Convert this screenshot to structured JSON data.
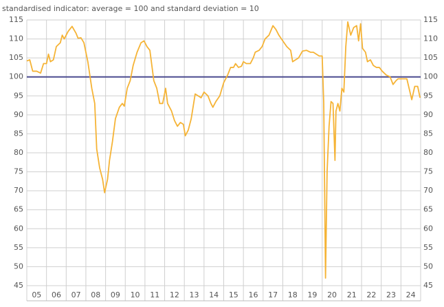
{
  "chart_data": {
    "type": "line",
    "title": "standardised indicator: average = 100 and standard deviation = 10",
    "x": [
      2005.0,
      2005.15,
      2005.3,
      2005.5,
      2005.7,
      2005.85,
      2006.0,
      2006.1,
      2006.2,
      2006.35,
      2006.5,
      2006.7,
      2006.8,
      2006.9,
      2007.1,
      2007.3,
      2007.5,
      2007.6,
      2007.75,
      2007.9,
      2008.1,
      2008.3,
      2008.45,
      2008.55,
      2008.7,
      2008.85,
      2008.95,
      2009.1,
      2009.2,
      2009.35,
      2009.5,
      2009.7,
      2009.85,
      2009.95,
      2010.1,
      2010.25,
      2010.4,
      2010.6,
      2010.8,
      2010.95,
      2011.1,
      2011.25,
      2011.35,
      2011.45,
      2011.6,
      2011.75,
      2011.9,
      2012.05,
      2012.15,
      2012.35,
      2012.5,
      2012.65,
      2012.8,
      2012.95,
      2013.05,
      2013.2,
      2013.35,
      2013.55,
      2013.7,
      2013.85,
      2014.0,
      2014.2,
      2014.35,
      2014.45,
      2014.6,
      2014.8,
      2015.0,
      2015.2,
      2015.35,
      2015.5,
      2015.6,
      2015.75,
      2015.9,
      2016.0,
      2016.15,
      2016.35,
      2016.5,
      2016.6,
      2016.8,
      2016.95,
      2017.1,
      2017.3,
      2017.5,
      2017.65,
      2017.8,
      2018.0,
      2018.2,
      2018.4,
      2018.5,
      2018.65,
      2018.8,
      2019.0,
      2019.2,
      2019.4,
      2019.55,
      2019.7,
      2019.85,
      2020.0,
      2020.08,
      2020.17,
      2020.25,
      2020.35,
      2020.45,
      2020.55,
      2020.65,
      2020.7,
      2020.8,
      2020.9,
      2021.0,
      2021.1,
      2021.2,
      2021.3,
      2021.45,
      2021.6,
      2021.75,
      2021.85,
      2021.95,
      2022.05,
      2022.2,
      2022.3,
      2022.45,
      2022.6,
      2022.75,
      2022.9,
      2023.05,
      2023.25,
      2023.45,
      2023.6,
      2023.75,
      2023.85,
      2024.0,
      2024.3,
      2024.55,
      2024.7,
      2024.85,
      2024.97
    ],
    "values": [
      104.2,
      104.5,
      101.5,
      101.5,
      101,
      103.5,
      103.5,
      106,
      104,
      104.5,
      108,
      109,
      111,
      110,
      112,
      113.3,
      111.5,
      110.2,
      110.3,
      109,
      104,
      97,
      93,
      81,
      76,
      73,
      69.5,
      73,
      78,
      83,
      89,
      92,
      93,
      92.3,
      97,
      99,
      103,
      106.5,
      109,
      109.5,
      108,
      107,
      103,
      99,
      97,
      93,
      93,
      97,
      93,
      91,
      88.5,
      87,
      88,
      87.5,
      84.5,
      86,
      89,
      95.5,
      95,
      94.5,
      96,
      95,
      93,
      92,
      93.5,
      95,
      98.5,
      100.5,
      102.5,
      102.5,
      103.5,
      102.5,
      102.8,
      104,
      103.5,
      103.5,
      105,
      106.5,
      107,
      108,
      110,
      111,
      113.5,
      112.5,
      111,
      109.5,
      108,
      107,
      104,
      104.5,
      105,
      106.8,
      107,
      106.5,
      106.5,
      106,
      105.5,
      105.5,
      93,
      47,
      75,
      87,
      93.5,
      93,
      78,
      91,
      93,
      91,
      97,
      96,
      108,
      114.5,
      111,
      113,
      113.5,
      109.5,
      114,
      107.5,
      106.5,
      104,
      104.5,
      103,
      102.5,
      102.5,
      101.5,
      100.5,
      100,
      98,
      99,
      99.5,
      99.5,
      99.5,
      94,
      97.5,
      97.5,
      94.5
    ],
    "color": "#f5b335",
    "reference_line": 100,
    "reference_color": "#4b4b8f",
    "xlim": [
      2005,
      2025
    ],
    "ylim": [
      45,
      115
    ],
    "yticks": [
      45,
      50,
      55,
      60,
      65,
      70,
      75,
      80,
      85,
      90,
      95,
      100,
      105,
      110,
      115
    ],
    "xticks": [
      {
        "value": 2005.5,
        "label": "05"
      },
      {
        "value": 2006.5,
        "label": "06"
      },
      {
        "value": 2007.5,
        "label": "07"
      },
      {
        "value": 2008.5,
        "label": "08"
      },
      {
        "value": 2009.5,
        "label": "09"
      },
      {
        "value": 2010.5,
        "label": "10"
      },
      {
        "value": 2011.5,
        "label": "11"
      },
      {
        "value": 2012.5,
        "label": "12"
      },
      {
        "value": 2013.5,
        "label": "13"
      },
      {
        "value": 2014.5,
        "label": "14"
      },
      {
        "value": 2015.5,
        "label": "15"
      },
      {
        "value": 2016.5,
        "label": "16"
      },
      {
        "value": 2017.5,
        "label": "17"
      },
      {
        "value": 2018.5,
        "label": "18"
      },
      {
        "value": 2019.5,
        "label": "19"
      },
      {
        "value": 2020.5,
        "label": "20"
      },
      {
        "value": 2021.5,
        "label": "21"
      },
      {
        "value": 2022.5,
        "label": "22"
      },
      {
        "value": 2023.5,
        "label": "23"
      },
      {
        "value": 2024.5,
        "label": "24"
      }
    ],
    "xgrid": [
      2005,
      2006,
      2007,
      2008,
      2009,
      2010,
      2011,
      2012,
      2013,
      2014,
      2015,
      2016,
      2017,
      2018,
      2019,
      2020,
      2021,
      2022,
      2023,
      2024,
      2025
    ],
    "grid": true
  }
}
